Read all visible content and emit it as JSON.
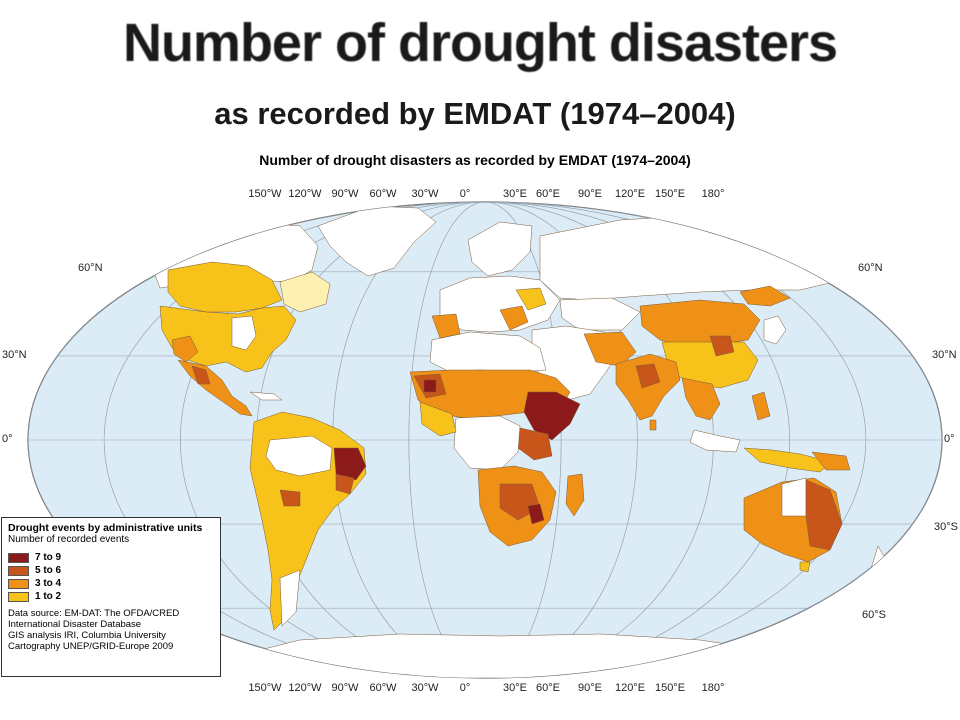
{
  "slide": {
    "title": "Number of drought disasters",
    "subtitle": "as recorded by EMDAT (1974–2004)"
  },
  "map": {
    "title": "Number of drought disasters as recorded by EMDAT (1974–2004)",
    "longitude_labels": [
      "150°W",
      "120°W",
      "90°W",
      "60°W",
      "30°W",
      "0°",
      "30°E",
      "60°E",
      "90°E",
      "120°E",
      "150°E",
      "180°"
    ],
    "latitude_labels_left": [
      "60°N",
      "30°N",
      "0°"
    ],
    "latitude_labels_right": [
      "60°N",
      "30°N",
      "0°",
      "30°S",
      "60°S"
    ],
    "colors": {
      "ocean": "#dcecf6",
      "land_no_data": "#ffffff",
      "class_7_9": "#8c1a1a",
      "class_5_6": "#c8561b",
      "class_3_4": "#ee9116",
      "class_1_2": "#f7c21a",
      "pale_region": "#fdf0b0"
    }
  },
  "legend": {
    "title": "Drought events by administrative units",
    "subtitle": "Number of recorded events",
    "items": [
      {
        "label": "7 to 9",
        "color": "#8c1a1a"
      },
      {
        "label": "5 to 6",
        "color": "#c8561b"
      },
      {
        "label": "3 to 4",
        "color": "#ee9116"
      },
      {
        "label": "1 to 2",
        "color": "#f7c21a"
      }
    ],
    "source_lines": [
      "Data source: EM-DAT: The OFDA/CRED",
      "International Disaster Database",
      "GIS analysis IRI, Columbia University",
      "Cartography UNEP/GRID-Europe 2009"
    ]
  }
}
